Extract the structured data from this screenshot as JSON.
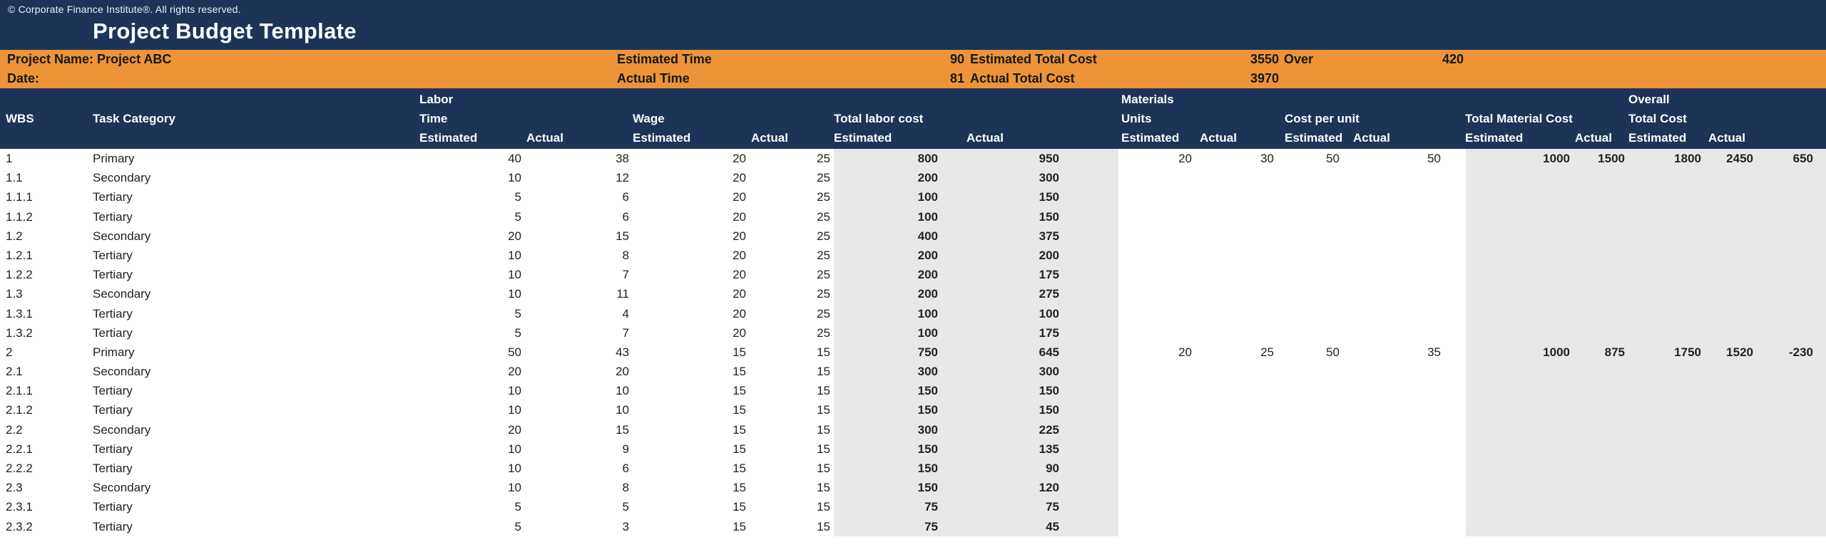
{
  "meta": {
    "copyright": "© Corporate Finance Institute®. All rights reserved.",
    "title": "Project Budget Template"
  },
  "colors": {
    "navy": "#1d3458",
    "orange": "#ed9438",
    "shaded_cell_gray": "#e8e8e9",
    "header_text": "#ffffff",
    "body_text": "#222222"
  },
  "summary": {
    "project_name": "Project Name: Project ABC",
    "date_label": "Date:",
    "estimated_time": {
      "label": "Estimated Time",
      "value": "90"
    },
    "actual_time": {
      "label": "Actual Time",
      "value": "81"
    },
    "estimated_total_cost": {
      "label": "Estimated Total Cost",
      "value": "3550"
    },
    "actual_total_cost": {
      "label": "Actual Total Cost",
      "value": "3970"
    },
    "over": {
      "label": "Over",
      "value": "420"
    }
  },
  "table": {
    "headers": {
      "wbs": "WBS",
      "task_category": "Task Category",
      "labor_line1": "Labor",
      "labor_line2": "Time",
      "wage": "Wage",
      "total_labor_cost": "Total labor cost",
      "materials_line1": "Materials",
      "materials_line2": "Units",
      "cost_per_unit": "Cost per unit",
      "total_material_cost": "Total Material Cost",
      "overall_line1": "Overall",
      "overall_line2": "Total Cost",
      "estimated": "Estimated",
      "actual": "Actual"
    },
    "rows": [
      [
        "1",
        "Primary",
        40,
        38,
        20,
        25,
        800,
        950,
        20,
        30,
        50,
        50,
        1000,
        1500,
        1800,
        2450,
        650
      ],
      [
        "1.1",
        "Secondary",
        10,
        12,
        20,
        25,
        200,
        300,
        null,
        null,
        null,
        null,
        null,
        null,
        null,
        null,
        null
      ],
      [
        "1.1.1",
        "Tertiary",
        5,
        6,
        20,
        25,
        100,
        150,
        null,
        null,
        null,
        null,
        null,
        null,
        null,
        null,
        null
      ],
      [
        "1.1.2",
        "Tertiary",
        5,
        6,
        20,
        25,
        100,
        150,
        null,
        null,
        null,
        null,
        null,
        null,
        null,
        null,
        null
      ],
      [
        "1.2",
        "Secondary",
        20,
        15,
        20,
        25,
        400,
        375,
        null,
        null,
        null,
        null,
        null,
        null,
        null,
        null,
        null
      ],
      [
        "1.2.1",
        "Tertiary",
        10,
        8,
        20,
        25,
        200,
        200,
        null,
        null,
        null,
        null,
        null,
        null,
        null,
        null,
        null
      ],
      [
        "1.2.2",
        "Tertiary",
        10,
        7,
        20,
        25,
        200,
        175,
        null,
        null,
        null,
        null,
        null,
        null,
        null,
        null,
        null
      ],
      [
        "1.3",
        "Secondary",
        10,
        11,
        20,
        25,
        200,
        275,
        null,
        null,
        null,
        null,
        null,
        null,
        null,
        null,
        null
      ],
      [
        "1.3.1",
        "Tertiary",
        5,
        4,
        20,
        25,
        100,
        100,
        null,
        null,
        null,
        null,
        null,
        null,
        null,
        null,
        null
      ],
      [
        "1.3.2",
        "Tertiary",
        5,
        7,
        20,
        25,
        100,
        175,
        null,
        null,
        null,
        null,
        null,
        null,
        null,
        null,
        null
      ],
      [
        "2",
        "Primary",
        50,
        43,
        15,
        15,
        750,
        645,
        20,
        25,
        50,
        35,
        1000,
        875,
        1750,
        1520,
        -230
      ],
      [
        "2.1",
        "Secondary",
        20,
        20,
        15,
        15,
        300,
        300,
        null,
        null,
        null,
        null,
        null,
        null,
        null,
        null,
        null
      ],
      [
        "2.1.1",
        "Tertiary",
        10,
        10,
        15,
        15,
        150,
        150,
        null,
        null,
        null,
        null,
        null,
        null,
        null,
        null,
        null
      ],
      [
        "2.1.2",
        "Tertiary",
        10,
        10,
        15,
        15,
        150,
        150,
        null,
        null,
        null,
        null,
        null,
        null,
        null,
        null,
        null
      ],
      [
        "2.2",
        "Secondary",
        20,
        15,
        15,
        15,
        300,
        225,
        null,
        null,
        null,
        null,
        null,
        null,
        null,
        null,
        null
      ],
      [
        "2.2.1",
        "Tertiary",
        10,
        9,
        15,
        15,
        150,
        135,
        null,
        null,
        null,
        null,
        null,
        null,
        null,
        null,
        null
      ],
      [
        "2.2.2",
        "Tertiary",
        10,
        6,
        15,
        15,
        150,
        90,
        null,
        null,
        null,
        null,
        null,
        null,
        null,
        null,
        null
      ],
      [
        "2.3",
        "Secondary",
        10,
        8,
        15,
        15,
        150,
        120,
        null,
        null,
        null,
        null,
        null,
        null,
        null,
        null,
        null
      ],
      [
        "2.3.1",
        "Tertiary",
        5,
        5,
        15,
        15,
        75,
        75,
        null,
        null,
        null,
        null,
        null,
        null,
        null,
        null,
        null
      ],
      [
        "2.3.2",
        "Tertiary",
        5,
        3,
        15,
        15,
        75,
        45,
        null,
        null,
        null,
        null,
        null,
        null,
        null,
        null,
        null
      ]
    ]
  }
}
